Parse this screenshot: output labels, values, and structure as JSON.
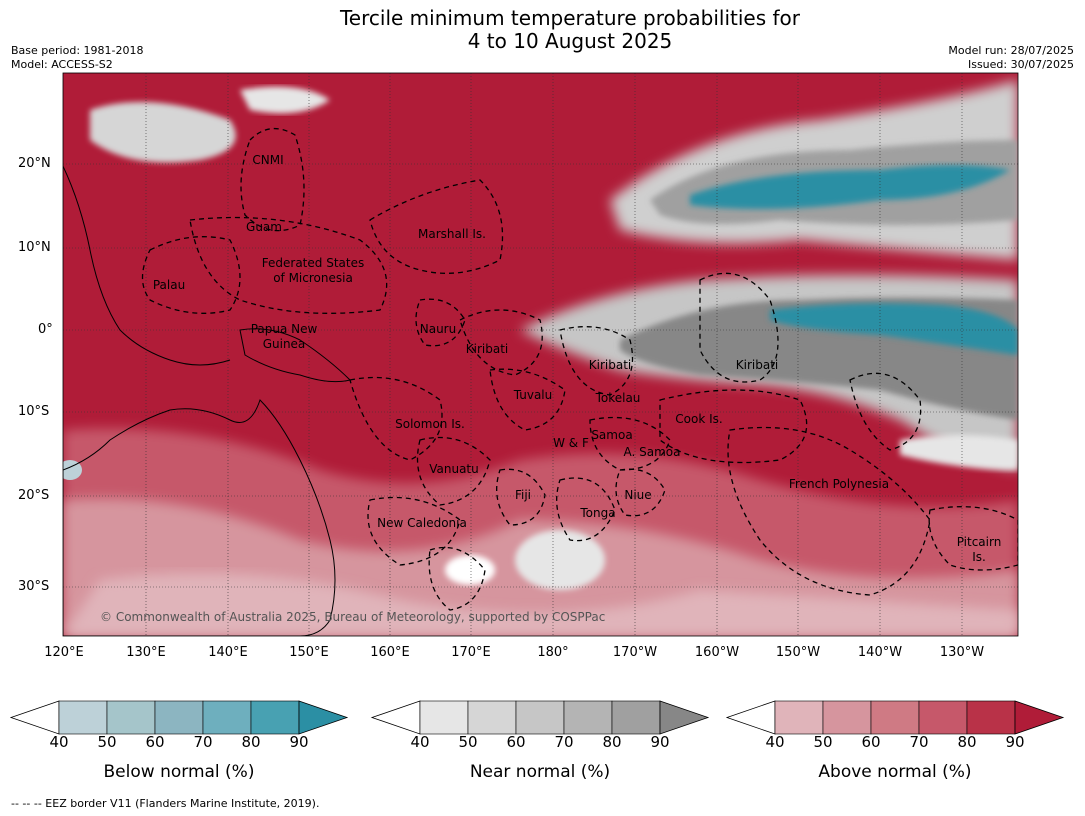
{
  "title_line1": "Tercile minimum temperature probabilities for",
  "title_line2": "4 to 10 August 2025",
  "base_period": "Base period: 1981-2018",
  "model": "Model: ACCESS-S2",
  "model_run": "Model run: 28/07/2025",
  "issued": "Issued: 30/07/2025",
  "lat_labels": [
    "20°N",
    "10°N",
    "0°",
    "10°S",
    "20°S",
    "30°S"
  ],
  "lon_labels": [
    "120°E",
    "130°E",
    "140°E",
    "150°E",
    "160°E",
    "170°E",
    "180°",
    "170°W",
    "160°W",
    "150°W",
    "140°W",
    "130°W"
  ],
  "places": [
    "CNMI",
    "Guam",
    "Marshall Is.",
    "Palau",
    "Federated States",
    "of Micronesia",
    "Papua New",
    "Guinea",
    "Nauru",
    "Kiribati",
    "Kiribati",
    "Kiribati",
    "Tuvalu",
    "Tokelau",
    "Cook Is.",
    "Solomon Is.",
    "W & F",
    "Samoa",
    "A. Samoa",
    "Vanuatu",
    "Fiji",
    "Niue",
    "Tonga",
    "French Polynesia",
    "New Caledonia",
    "Pitcairn",
    "Is."
  ],
  "copyright": "© Commonwealth of Australia 2025, Bureau of Meteorology, supported by COSPPac",
  "colorbars": [
    {
      "label": "Below normal (%)",
      "ticks": [
        "40",
        "50",
        "60",
        "70",
        "80",
        "90"
      ],
      "colors": [
        "#bdd1d8",
        "#a5c5ca",
        "#8cb5c1",
        "#6eafbe",
        "#48a1b2",
        "#2b8fa4"
      ]
    },
    {
      "label": "Near normal (%)",
      "ticks": [
        "40",
        "50",
        "60",
        "70",
        "80",
        "90"
      ],
      "colors": [
        "#e6e6e6",
        "#d6d6d6",
        "#c6c6c6",
        "#b4b4b4",
        "#a0a0a0",
        "#878787"
      ]
    },
    {
      "label": "Above normal (%)",
      "ticks": [
        "40",
        "50",
        "60",
        "70",
        "80",
        "90"
      ],
      "colors": [
        "#e0b4ba",
        "#d6959e",
        "#cf7a84",
        "#c6586a",
        "#b93248",
        "#b01c38"
      ]
    }
  ],
  "footnote": "-- -- -- EEZ border V11 (Flanders Marine Institute, 2019)."
}
